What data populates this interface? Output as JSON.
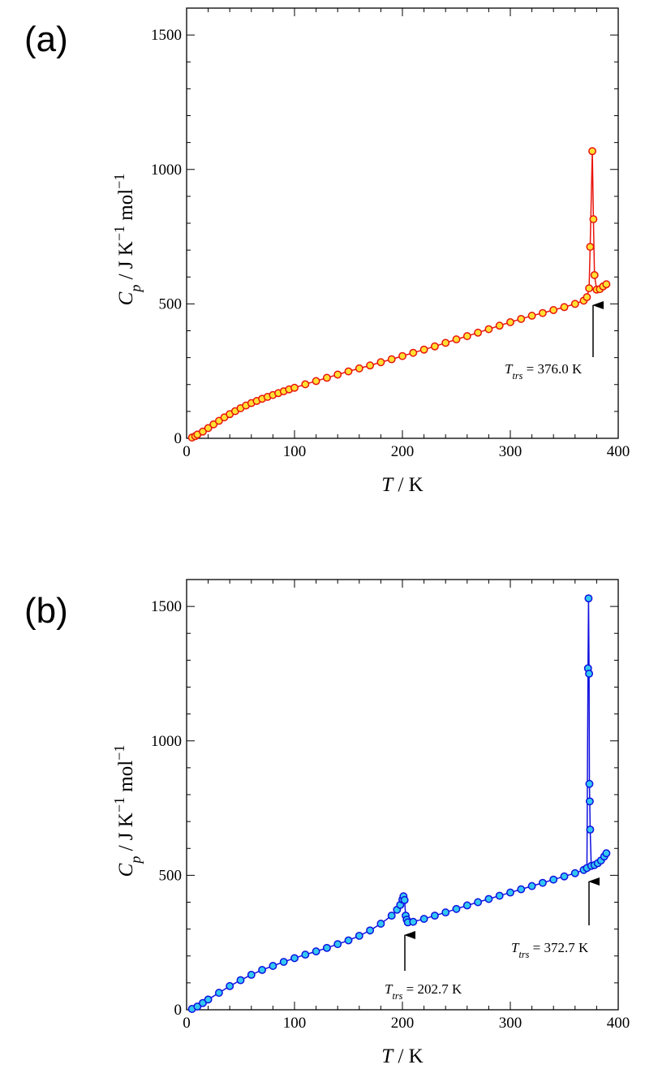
{
  "chart_data": [
    {
      "type": "line",
      "label": "(a)",
      "xlabel": [
        "T",
        " / ",
        "K"
      ],
      "ylabel": [
        "C",
        "p",
        " / ",
        "J K",
        "−1",
        " mol",
        "−1"
      ],
      "xlim": [
        0,
        400
      ],
      "ylim": [
        0,
        1600
      ],
      "xticks": [
        0,
        100,
        200,
        300,
        400
      ],
      "yticks": [
        0,
        500,
        1000,
        1500
      ],
      "minor_divisions": 5,
      "series": [
        {
          "color": "#e8140c",
          "marker_fill": "#ffe033",
          "x": [
            5,
            8,
            10,
            15,
            20,
            25,
            30,
            35,
            40,
            45,
            50,
            55,
            60,
            65,
            70,
            75,
            80,
            85,
            90,
            95,
            100,
            110,
            120,
            130,
            140,
            150,
            160,
            170,
            180,
            190,
            200,
            210,
            220,
            230,
            240,
            250,
            260,
            270,
            280,
            290,
            300,
            310,
            320,
            330,
            340,
            350,
            360,
            368,
            371,
            373,
            374,
            376,
            377,
            378,
            380,
            383,
            386,
            389
          ],
          "values": [
            3,
            8,
            14,
            25,
            38,
            52,
            65,
            78,
            90,
            101,
            112,
            122,
            131,
            139,
            147,
            154,
            161,
            168,
            175,
            182,
            188,
            201,
            213,
            225,
            237,
            249,
            260,
            271,
            283,
            294,
            306,
            318,
            330,
            342,
            355,
            368,
            380,
            393,
            406,
            419,
            432,
            444,
            456,
            466,
            477,
            488,
            500,
            512,
            525,
            558,
            712,
            1068,
            815,
            607,
            553,
            555,
            565,
            573
          ]
        }
      ],
      "annotations": [
        {
          "parts": [
            "T",
            "trs",
            " = 376.0 K"
          ]
        }
      ]
    },
    {
      "type": "line",
      "label": "(b)",
      "xlabel": [
        "T",
        " / ",
        "K"
      ],
      "ylabel": [
        "C",
        "p",
        " / ",
        "J K",
        "−1",
        " mol",
        "−1"
      ],
      "xlim": [
        0,
        400
      ],
      "ylim": [
        0,
        1600
      ],
      "xticks": [
        0,
        100,
        200,
        300,
        400
      ],
      "yticks": [
        0,
        500,
        1000,
        1500
      ],
      "minor_divisions": 5,
      "series": [
        {
          "color": "#1010e0",
          "marker_fill": "#33c8f0",
          "x": [
            5,
            10,
            15,
            20,
            30,
            40,
            50,
            60,
            70,
            80,
            90,
            100,
            110,
            120,
            130,
            140,
            150,
            160,
            170,
            180,
            190,
            195,
            198,
            200,
            201,
            202,
            203,
            204,
            205,
            210,
            220,
            230,
            240,
            250,
            260,
            270,
            280,
            290,
            300,
            310,
            320,
            330,
            340,
            350,
            360,
            368,
            371,
            372,
            372.5,
            373,
            373.3,
            373.6,
            374,
            375,
            378,
            381,
            384,
            387,
            389
          ],
          "values": [
            3,
            12,
            25,
            38,
            63,
            88,
            110,
            130,
            148,
            163,
            178,
            192,
            205,
            217,
            230,
            244,
            258,
            275,
            295,
            320,
            350,
            372,
            390,
            410,
            422,
            408,
            350,
            335,
            325,
            327,
            338,
            350,
            362,
            375,
            388,
            400,
            412,
            424,
            436,
            448,
            460,
            472,
            484,
            496,
            508,
            520,
            527,
            1270,
            1530,
            1250,
            840,
            775,
            670,
            535,
            538,
            545,
            555,
            570,
            582
          ]
        }
      ],
      "annotations": [
        {
          "parts": [
            "T",
            "trs",
            " = 202.7 K"
          ]
        },
        {
          "parts": [
            "T",
            "trs",
            " = 372.7 K"
          ]
        }
      ]
    }
  ]
}
